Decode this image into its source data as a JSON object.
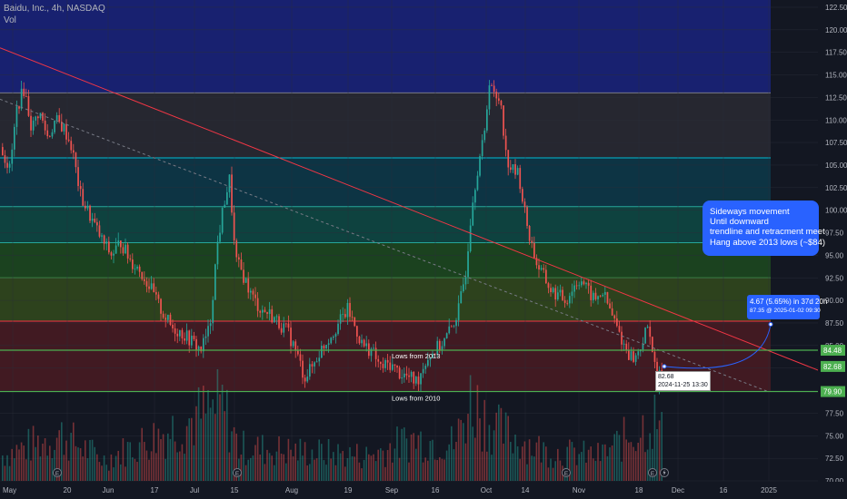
{
  "header": {
    "title": "Baidu, Inc., 4h, NASDAQ",
    "volume_label": "Vol"
  },
  "annotations": {
    "callout_lines": [
      "Sideways movement",
      "Until downward",
      "trendline and retracment meet",
      "Hang above 2013 lows (~$84)"
    ],
    "measure_line1": "4.67 (5.65%) in 37d 20h",
    "measure_line2": "87.35 @ 2025-01-02  09:30",
    "point_price": "82.68",
    "point_time": "2024-11-25 13:30",
    "lows_2013": "Lows from 2013",
    "lows_2010": "Lows from 2010"
  },
  "chart_data": {
    "type": "candlestick",
    "title": "Baidu, Inc., 4h, NASDAQ",
    "y_axis": {
      "ticks": [
        "122.50",
        "120.00",
        "117.50",
        "115.00",
        "112.50",
        "110.00",
        "107.50",
        "105.00",
        "102.50",
        "100.00",
        "97.50",
        "95.00",
        "92.50",
        "90.00",
        "87.50",
        "85.00",
        "82.50",
        "80.00",
        "77.50",
        "75.00",
        "72.50",
        "70.00"
      ],
      "ylim": [
        70,
        123.3
      ]
    },
    "x_axis": {
      "ticks": [
        "May",
        "20",
        "Jun",
        "17",
        "Jul",
        "15",
        "Aug",
        "19",
        "Sep",
        "16",
        "Oct",
        "14",
        "Nov",
        "18",
        "Dec",
        "16",
        "2025"
      ]
    },
    "price_labels": [
      {
        "value": 84.48,
        "text": "84.48",
        "color": "#4caf50"
      },
      {
        "value": 82.68,
        "text": "82.68",
        "color": "#4caf50"
      },
      {
        "value": 79.9,
        "text": "79.90",
        "color": "#4caf50"
      }
    ],
    "fib_bands": [
      {
        "from": 123.3,
        "to": 113.0,
        "color": "#1a237e"
      },
      {
        "from": 113.0,
        "to": 105.8,
        "color": "#2a2a33"
      },
      {
        "from": 105.8,
        "to": 100.4,
        "color": "#0d3a4a"
      },
      {
        "from": 100.4,
        "to": 96.4,
        "color": "#0e4a44"
      },
      {
        "from": 96.4,
        "to": 92.5,
        "color": "#1d4a1f"
      },
      {
        "from": 92.5,
        "to": 87.7,
        "color": "#324a1c"
      },
      {
        "from": 87.7,
        "to": 79.9,
        "color": "#4a1b22"
      }
    ],
    "fib_lines": [
      {
        "value": 113.0,
        "color": "#787b86"
      },
      {
        "value": 105.8,
        "color": "#00bcd4"
      },
      {
        "value": 100.4,
        "color": "#26a69a"
      },
      {
        "value": 96.4,
        "color": "#26a69a"
      },
      {
        "value": 92.5,
        "color": "#4caf50"
      },
      {
        "value": 87.7,
        "color": "#f23645"
      },
      {
        "value": 79.9,
        "color": "#4caf50"
      }
    ],
    "support_line": {
      "value": 84.48,
      "color": "#4caf50"
    },
    "trendline_red": {
      "from": [
        0,
        118.0
      ],
      "to": [
        932,
        81.0
      ],
      "color": "#f23645"
    },
    "trendline_dashed": {
      "from": [
        0,
        112.3
      ],
      "to": [
        845,
        79.9
      ],
      "color": "#787b86"
    },
    "close_path": [
      [
        0,
        107.0
      ],
      [
        10,
        104.5
      ],
      [
        18,
        111.5
      ],
      [
        26,
        113.5
      ],
      [
        34,
        109.0
      ],
      [
        42,
        111.0
      ],
      [
        52,
        108.0
      ],
      [
        60,
        110.0
      ],
      [
        70,
        109.0
      ],
      [
        78,
        107.0
      ],
      [
        88,
        101.5
      ],
      [
        100,
        99.0
      ],
      [
        112,
        96.5
      ],
      [
        122,
        95.0
      ],
      [
        132,
        96.5
      ],
      [
        142,
        94.5
      ],
      [
        152,
        93.5
      ],
      [
        164,
        91.5
      ],
      [
        176,
        89.0
      ],
      [
        188,
        87.0
      ],
      [
        198,
        86.5
      ],
      [
        210,
        85.5
      ],
      [
        220,
        84.5
      ],
      [
        230,
        87.0
      ],
      [
        238,
        96.0
      ],
      [
        246,
        101.0
      ],
      [
        252,
        103.5
      ],
      [
        258,
        94.5
      ],
      [
        266,
        93.0
      ],
      [
        276,
        90.5
      ],
      [
        286,
        89.0
      ],
      [
        296,
        88.5
      ],
      [
        306,
        87.5
      ],
      [
        316,
        86.5
      ],
      [
        326,
        84.0
      ],
      [
        334,
        81.5
      ],
      [
        342,
        82.5
      ],
      [
        352,
        84.5
      ],
      [
        362,
        86.0
      ],
      [
        372,
        87.5
      ],
      [
        382,
        89.0
      ],
      [
        390,
        87.0
      ],
      [
        398,
        85.0
      ],
      [
        408,
        84.5
      ],
      [
        418,
        82.5
      ],
      [
        428,
        83.0
      ],
      [
        438,
        82.0
      ],
      [
        448,
        81.5
      ],
      [
        458,
        81.0
      ],
      [
        468,
        83.5
      ],
      [
        478,
        84.5
      ],
      [
        488,
        85.5
      ],
      [
        496,
        87.0
      ],
      [
        504,
        89.0
      ],
      [
        512,
        93.5
      ],
      [
        518,
        100.5
      ],
      [
        526,
        105.5
      ],
      [
        532,
        108.0
      ],
      [
        538,
        115.0
      ],
      [
        544,
        112.0
      ],
      [
        550,
        112.5
      ],
      [
        556,
        106.0
      ],
      [
        562,
        104.5
      ],
      [
        570,
        104.0
      ],
      [
        576,
        100.0
      ],
      [
        582,
        97.0
      ],
      [
        590,
        94.0
      ],
      [
        598,
        92.5
      ],
      [
        606,
        91.0
      ],
      [
        614,
        90.5
      ],
      [
        622,
        90.0
      ],
      [
        630,
        91.5
      ],
      [
        638,
        92.5
      ],
      [
        646,
        91.0
      ],
      [
        654,
        90.0
      ],
      [
        662,
        91.0
      ],
      [
        670,
        89.0
      ],
      [
        678,
        87.0
      ],
      [
        686,
        85.0
      ],
      [
        692,
        84.0
      ],
      [
        698,
        83.5
      ],
      [
        704,
        85.0
      ],
      [
        710,
        86.5
      ],
      [
        714,
        87.0
      ],
      [
        722,
        80.5
      ],
      [
        728,
        82.68
      ]
    ],
    "volume_path": [
      [
        0,
        0.3
      ],
      [
        66,
        0.55
      ],
      [
        114,
        0.25
      ],
      [
        244,
        0.9
      ],
      [
        262,
        0.4
      ],
      [
        330,
        0.35
      ],
      [
        404,
        0.3
      ],
      [
        454,
        0.5
      ],
      [
        500,
        0.45
      ],
      [
        518,
        1.0
      ],
      [
        530,
        0.8
      ],
      [
        548,
        0.6
      ],
      [
        600,
        0.35
      ],
      [
        660,
        0.3
      ],
      [
        720,
        0.75
      ],
      [
        732,
        0.45
      ]
    ]
  }
}
